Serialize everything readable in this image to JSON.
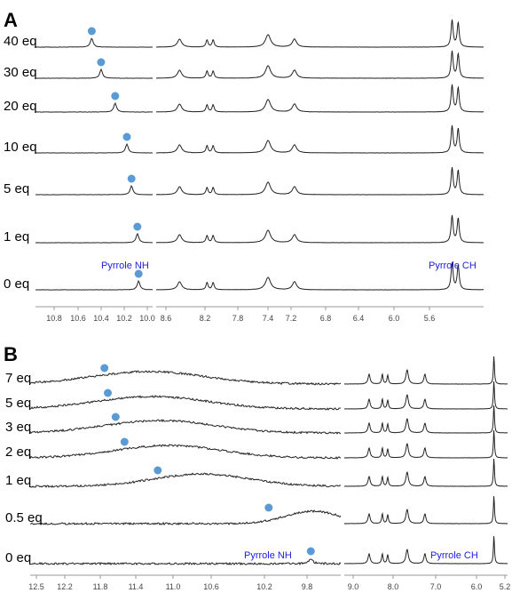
{
  "chart_data": [
    {
      "type": "line",
      "panel": "A",
      "segments": [
        {
          "ticks": [
            10.8,
            10.6,
            10.4,
            10.2,
            10.0
          ]
        },
        {
          "ticks": [
            8.6,
            8.2,
            7.8,
            7.4,
            7.2,
            6.8,
            6.4,
            6.0,
            5.6
          ]
        }
      ],
      "series": [
        {
          "name": "40 eq",
          "nh_ppm": 10.42
        },
        {
          "name": "30 eq",
          "nh_ppm": 10.34
        },
        {
          "name": "20 eq",
          "nh_ppm": 10.22
        },
        {
          "name": "10 eq",
          "nh_ppm": 10.12
        },
        {
          "name": "5 eq",
          "nh_ppm": 10.08
        },
        {
          "name": "1 eq",
          "nh_ppm": 10.03
        },
        {
          "name": "0 eq",
          "nh_ppm": 10.02
        }
      ],
      "peaks_ppm": [
        8.42,
        8.15,
        8.09,
        7.55,
        7.29,
        5.74,
        5.68
      ],
      "annotations": [
        "Pyrrole NH",
        "Pyrrole CH"
      ]
    },
    {
      "type": "line",
      "panel": "B",
      "segments": [
        {
          "ticks": [
            12.5,
            12.2,
            11.8,
            11.4,
            11.0,
            10.6,
            10.2,
            9.8
          ]
        },
        {
          "ticks": [
            9.0,
            8.0,
            7.0,
            6.0,
            5.2
          ]
        }
      ],
      "series": [
        {
          "name": "7 eq",
          "nh_ppm": 11.88
        },
        {
          "name": "5 eq",
          "nh_ppm": 11.85
        },
        {
          "name": "3 eq",
          "nh_ppm": 11.78
        },
        {
          "name": "2 eq",
          "nh_ppm": 11.7
        },
        {
          "name": "1 eq",
          "nh_ppm": 11.4
        },
        {
          "name": "0.5 eq",
          "nh_ppm": 10.4
        },
        {
          "name": "0 eq",
          "nh_ppm": 10.02
        }
      ],
      "peaks_ppm": [
        8.5,
        8.18,
        8.05,
        7.58,
        7.15,
        5.48
      ],
      "annotations": [
        "Pyrrole NH",
        "Pyrrole CH"
      ]
    }
  ],
  "colors": {
    "trace": "#222222",
    "marker": "#5b9bd5",
    "annotation": "#2020e0",
    "axis": "#999999"
  }
}
